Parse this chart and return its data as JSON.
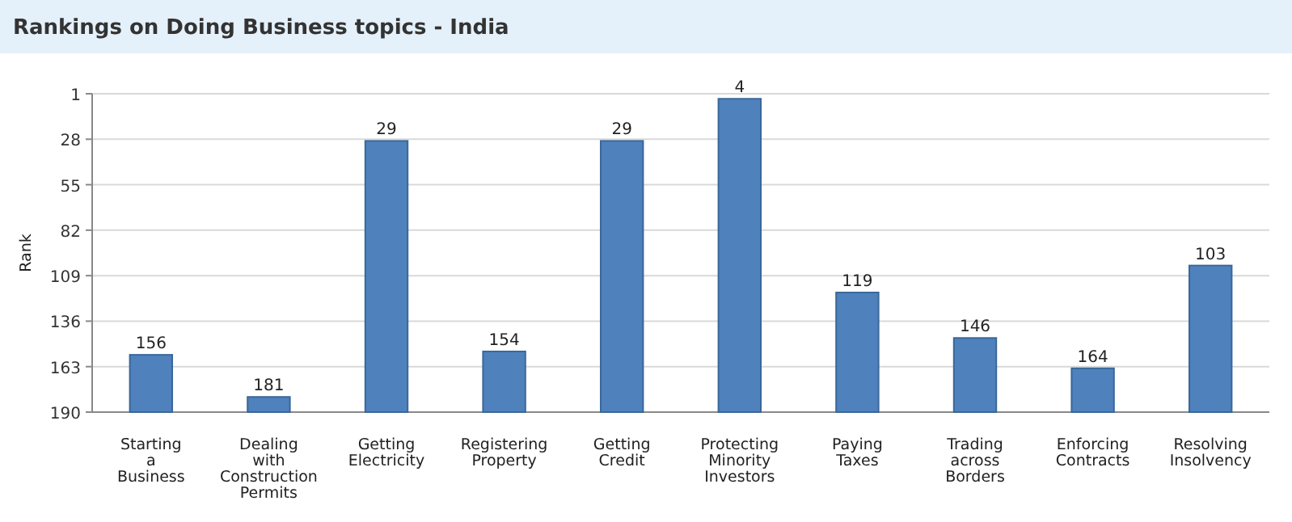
{
  "chart_data": {
    "type": "bar",
    "title": "Rankings on Doing Business topics - India",
    "ylabel": "Rank",
    "categories": [
      "Starting a Business",
      "Dealing with Construction Permits",
      "Getting Electricity",
      "Registering Property",
      "Getting Credit",
      "Protecting Minority Investors",
      "Paying Taxes",
      "Trading across Borders",
      "Enforcing Contracts",
      "Resolving Insolvency"
    ],
    "values": [
      -34,
      -9,
      -161,
      -36,
      -161,
      -186,
      -71,
      -44,
      -26,
      -87
    ],
    "base": [
      190,
      190,
      190,
      190,
      190,
      190,
      190,
      190,
      190,
      190
    ],
    "value_labels": [
      "156",
      "181",
      "29",
      "154",
      "29",
      "4",
      "119",
      "146",
      "164",
      "103"
    ],
    "color": "#4f81bd",
    "ylim": [
      190,
      1
    ],
    "yticks": [
      1,
      28,
      55,
      82,
      109,
      136,
      163,
      190
    ],
    "grid": "y"
  }
}
